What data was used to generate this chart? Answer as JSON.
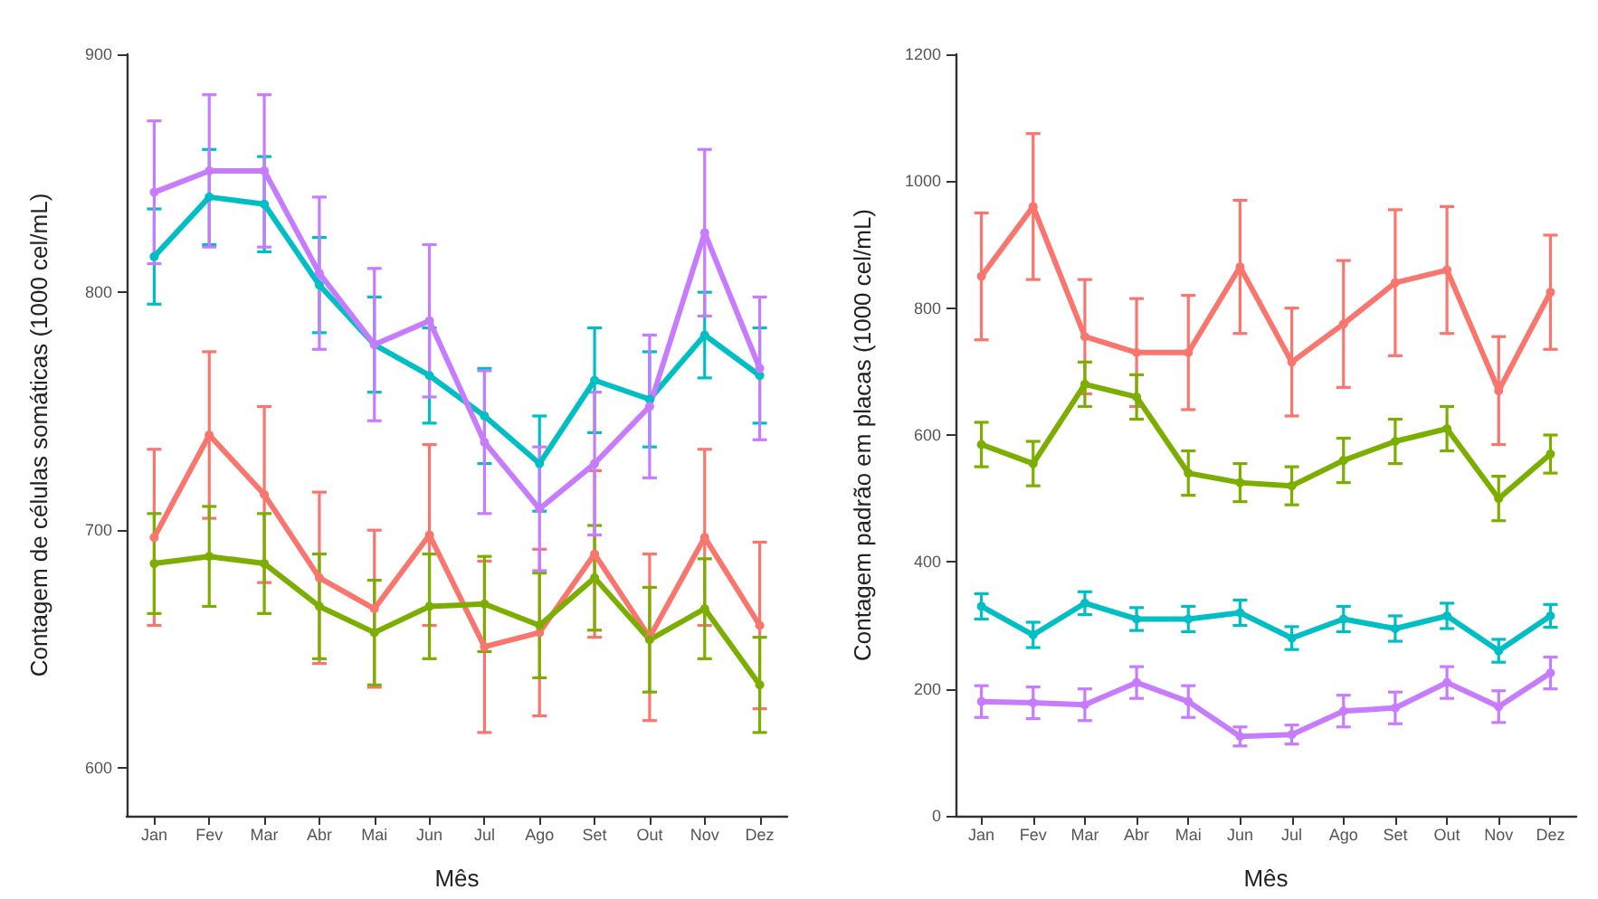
{
  "chart_data": [
    {
      "type": "line",
      "xlabel": "Mês",
      "ylabel": "Contagem de células somáticas (1000 cel/mL)",
      "categories": [
        "Jan",
        "Fev",
        "Mar",
        "Abr",
        "Mai",
        "Jun",
        "Jul",
        "Ago",
        "Set",
        "Out",
        "Nov",
        "Dez"
      ],
      "ylim": [
        580,
        900
      ],
      "yticks": [
        600,
        700,
        800,
        900
      ],
      "grid": false,
      "marker": "circle",
      "series": [
        {
          "color": "#f8766d",
          "values": [
            697,
            740,
            715,
            680,
            667,
            698,
            651,
            657,
            690,
            655,
            697,
            660
          ],
          "errors": [
            37,
            35,
            37,
            36,
            33,
            38,
            36,
            35,
            35,
            35,
            37,
            35
          ]
        },
        {
          "color": "#7cae00",
          "values": [
            686,
            689,
            686,
            668,
            657,
            668,
            669,
            660,
            680,
            654,
            667,
            635
          ],
          "errors": [
            21,
            21,
            21,
            22,
            22,
            22,
            20,
            22,
            22,
            22,
            21,
            20
          ]
        },
        {
          "color": "#00bfc4",
          "values": [
            815,
            840,
            837,
            803,
            778,
            765,
            748,
            728,
            763,
            755,
            782,
            765
          ],
          "errors": [
            20,
            20,
            20,
            20,
            20,
            20,
            20,
            20,
            22,
            20,
            18,
            20
          ]
        },
        {
          "color": "#c77cff",
          "values": [
            842,
            851,
            851,
            808,
            778,
            788,
            737,
            709,
            728,
            752,
            825,
            768
          ],
          "errors": [
            30,
            32,
            32,
            32,
            32,
            32,
            30,
            26,
            30,
            30,
            35,
            30
          ]
        }
      ]
    },
    {
      "type": "line",
      "xlabel": "Mês",
      "ylabel": "Contagem padrão em placas (1000 cel/mL)",
      "categories": [
        "Jan",
        "Fev",
        "Mar",
        "Abr",
        "Mai",
        "Jun",
        "Jul",
        "Ago",
        "Set",
        "Out",
        "Nov",
        "Dez"
      ],
      "ylim": [
        0,
        1200
      ],
      "yticks": [
        0,
        200,
        400,
        600,
        800,
        1000,
        1200
      ],
      "grid": false,
      "marker": "circle",
      "series": [
        {
          "color": "#f8766d",
          "values": [
            850,
            960,
            755,
            730,
            730,
            865,
            715,
            775,
            840,
            860,
            670,
            825
          ],
          "errors": [
            100,
            115,
            90,
            85,
            90,
            105,
            85,
            100,
            115,
            100,
            85,
            90
          ]
        },
        {
          "color": "#7cae00",
          "values": [
            585,
            555,
            680,
            660,
            540,
            525,
            520,
            560,
            590,
            610,
            500,
            570
          ],
          "errors": [
            35,
            35,
            35,
            35,
            35,
            30,
            30,
            35,
            35,
            35,
            35,
            30
          ]
        },
        {
          "color": "#00bfc4",
          "values": [
            330,
            285,
            335,
            310,
            310,
            320,
            280,
            310,
            295,
            315,
            260,
            315
          ],
          "errors": [
            20,
            20,
            18,
            18,
            20,
            20,
            18,
            20,
            20,
            20,
            18,
            18
          ]
        },
        {
          "color": "#c77cff",
          "values": [
            180,
            178,
            175,
            210,
            180,
            125,
            128,
            165,
            170,
            210,
            172,
            225
          ],
          "errors": [
            25,
            25,
            25,
            25,
            25,
            15,
            15,
            25,
            25,
            25,
            25,
            25
          ]
        }
      ]
    }
  ]
}
